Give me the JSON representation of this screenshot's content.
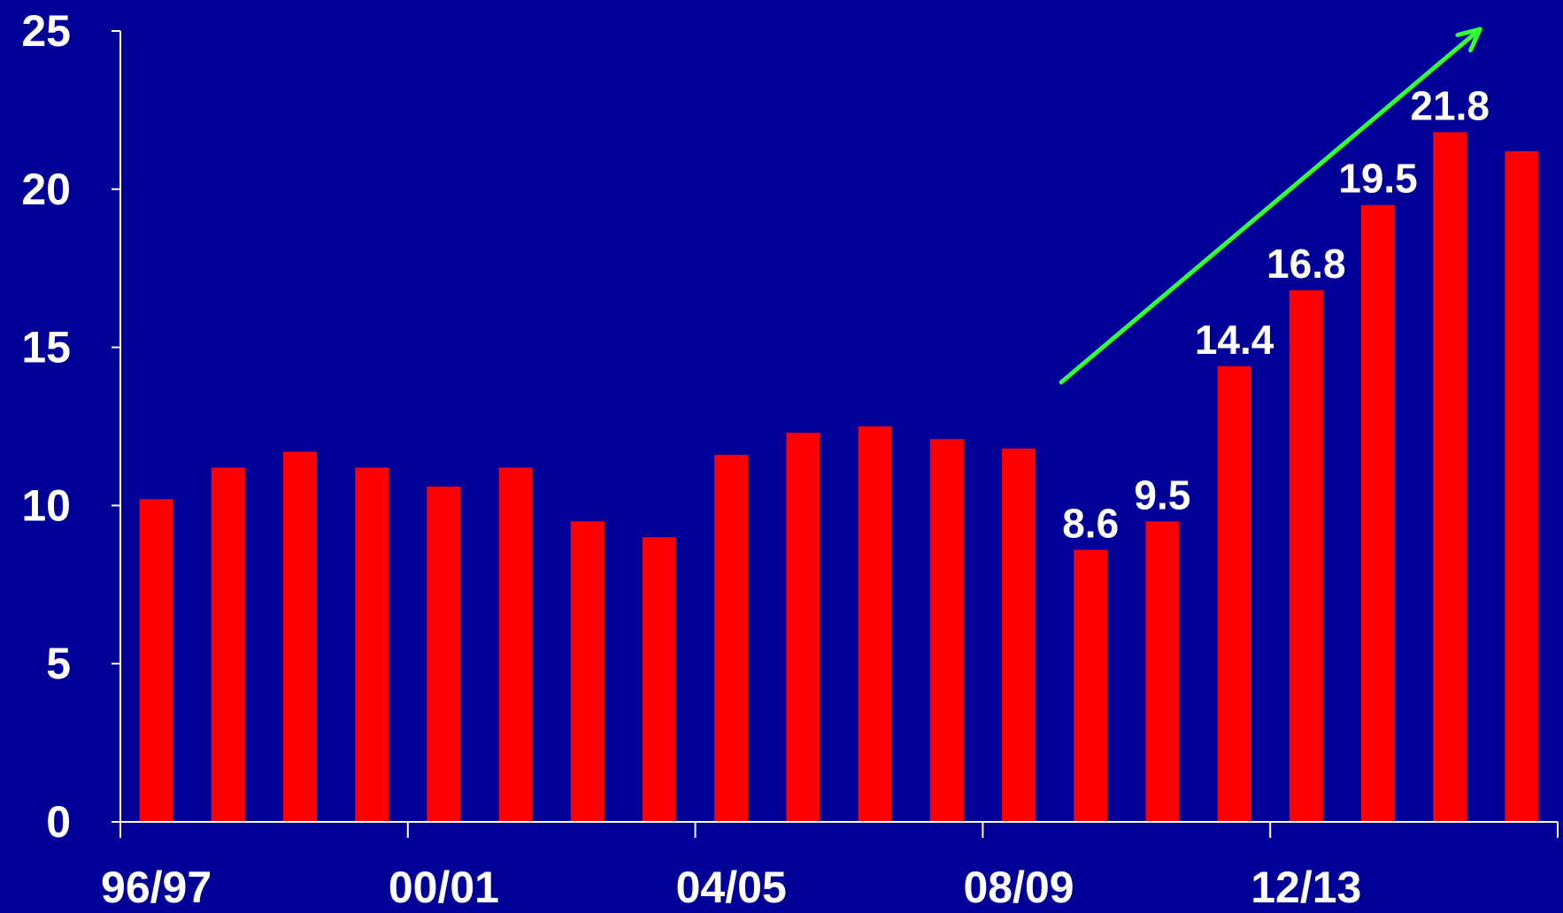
{
  "chart_data": {
    "type": "bar",
    "title": "",
    "xlabel": "",
    "ylabel": "",
    "ylim": [
      0,
      25
    ],
    "yticks": [
      0,
      5,
      10,
      15,
      20,
      25
    ],
    "categories": [
      "96/97",
      "",
      "",
      "",
      "00/01",
      "",
      "",
      "",
      "04/05",
      "",
      "",
      "",
      "08/09",
      "",
      "",
      "",
      "12/13",
      "",
      "",
      ""
    ],
    "x_tick_labels": [
      "96/97",
      "00/01",
      "04/05",
      "08/09",
      "12/13"
    ],
    "values": [
      10.2,
      11.2,
      11.7,
      11.2,
      10.6,
      11.2,
      9.5,
      9.0,
      11.6,
      12.3,
      12.5,
      12.1,
      11.8,
      8.6,
      9.5,
      14.4,
      16.8,
      19.5,
      21.8,
      21.2
    ],
    "data_labels": [
      "",
      "",
      "",
      "",
      "",
      "",
      "",
      "",
      "",
      "",
      "",
      "",
      "",
      "8.6",
      "9.5",
      "14.4",
      "16.8",
      "19.5",
      "21.8",
      ""
    ],
    "grid": false,
    "legend": "none",
    "trend_arrow": {
      "from_index": 13,
      "to_index": 18,
      "color": "#33ff33"
    },
    "colors": {
      "background": "#000099",
      "bar": "#ff0000",
      "axis": "#ffffff",
      "text": "#ffffff",
      "arrow": "#33ff33"
    }
  }
}
